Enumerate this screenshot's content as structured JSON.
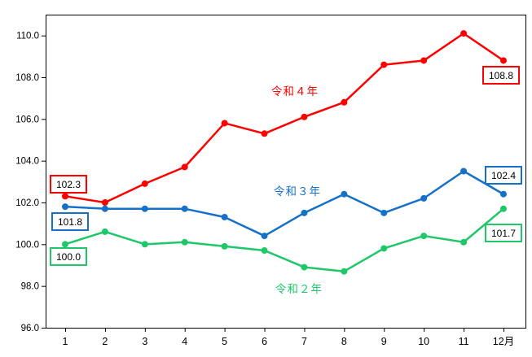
{
  "chart_data": {
    "type": "line",
    "title": "",
    "xlabel": "",
    "ylabel": "",
    "categories": [
      "1",
      "2",
      "3",
      "4",
      "5",
      "6",
      "7",
      "8",
      "9",
      "10",
      "11",
      "12月"
    ],
    "ylim": [
      96,
      111
    ],
    "y_tick_values": [
      96,
      98,
      100,
      102,
      104,
      106,
      108,
      110
    ],
    "y_tick_labels": [
      "96.0",
      "98.0",
      "100.0",
      "102.0",
      "104.0",
      "106.0",
      "108.0",
      "110.0"
    ],
    "grid": false,
    "legend_position": "inline-annotations",
    "axis_color": "#000000",
    "series": [
      {
        "name": "令和４年",
        "color": "#FF0000",
        "values": [
          102.3,
          102.0,
          102.9,
          103.7,
          105.8,
          105.3,
          106.1,
          106.8,
          108.6,
          108.8,
          110.1,
          108.8
        ],
        "start_label": "102.3",
        "end_label": "108.8"
      },
      {
        "name": "令和３年",
        "color": "#1470C8",
        "values": [
          101.8,
          101.7,
          101.7,
          101.7,
          101.3,
          100.4,
          101.5,
          102.4,
          101.5,
          102.2,
          103.5,
          102.4
        ],
        "start_label": "101.8",
        "end_label": "102.4"
      },
      {
        "name": "令和２年",
        "color": "#1EC868",
        "values": [
          100.0,
          100.6,
          100.0,
          100.1,
          99.9,
          99.7,
          98.9,
          98.7,
          99.8,
          100.4,
          100.1,
          101.7
        ],
        "start_label": "100.0",
        "end_label": "101.7"
      }
    ]
  }
}
